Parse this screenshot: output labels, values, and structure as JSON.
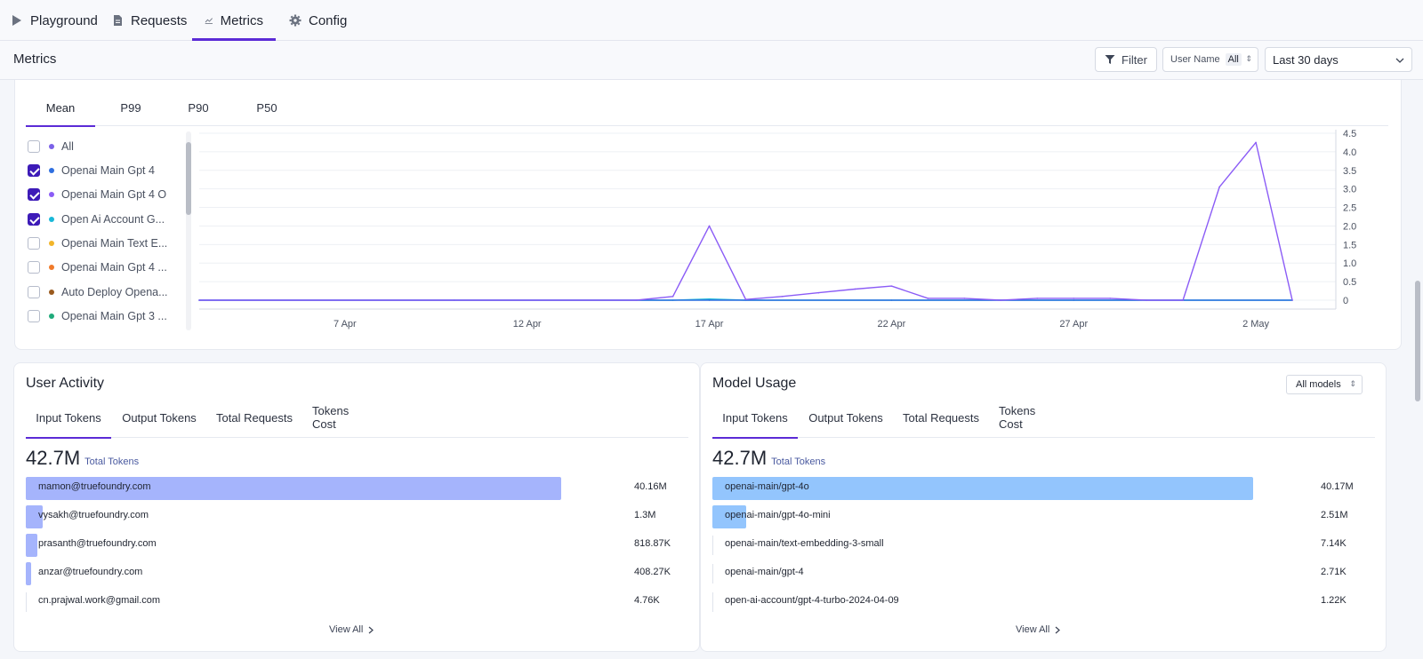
{
  "nav": {
    "tabs": [
      {
        "label": "Playground",
        "icon": "play-icon"
      },
      {
        "label": "Requests",
        "icon": "document-icon"
      },
      {
        "label": "Metrics",
        "icon": "line-chart-icon",
        "active": true
      },
      {
        "label": "Config",
        "icon": "gear-icon"
      }
    ]
  },
  "header": {
    "title": "Metrics",
    "filter_label": "Filter",
    "user_filter_label": "User Name",
    "user_filter_value": "All",
    "date_range": "Last 30 days"
  },
  "percentile_tabs": [
    "Mean",
    "P99",
    "P90",
    "P50"
  ],
  "active_percentile": "Mean",
  "legend": [
    {
      "label": "All",
      "color": "#7b61e8",
      "checked": false
    },
    {
      "label": "Openai Main Gpt 4",
      "color": "#2f6fe0",
      "checked": true
    },
    {
      "label": "Openai Main Gpt 4 O",
      "color": "#8b5cf6",
      "checked": true
    },
    {
      "label": "Open Ai Account G...",
      "color": "#19b8d8",
      "checked": true
    },
    {
      "label": "Openai Main Text E...",
      "color": "#f2b52a",
      "checked": false
    },
    {
      "label": "Openai Main Gpt 4 ...",
      "color": "#f07a2a",
      "checked": false
    },
    {
      "label": "Auto Deploy Opena...",
      "color": "#9a5a1e",
      "checked": false
    },
    {
      "label": "Openai Main Gpt 3 ...",
      "color": "#1faa7a",
      "checked": false
    }
  ],
  "chart_data": {
    "type": "line",
    "x_range": [
      "2024-04-03",
      "2024-05-04"
    ],
    "x_ticks": [
      "7 Apr",
      "12 Apr",
      "17 Apr",
      "22 Apr",
      "27 Apr",
      "2 May"
    ],
    "y_ticks": [
      "0",
      "0.5",
      "1.0",
      "1.5",
      "2.0",
      "2.5",
      "3.0",
      "3.5",
      "4.0",
      "4.5"
    ],
    "ylim": [
      0,
      4.5
    ],
    "y_axis_position": "right",
    "grid": true,
    "series": [
      {
        "name": "Openai Main Gpt 4 O",
        "color": "#8b5cf6",
        "x": [
          "2024-04-03",
          "2024-04-15",
          "2024-04-16",
          "2024-04-17",
          "2024-04-18",
          "2024-04-19",
          "2024-04-20",
          "2024-04-21",
          "2024-04-22",
          "2024-04-23",
          "2024-04-24",
          "2024-04-25",
          "2024-04-26",
          "2024-04-27",
          "2024-04-28",
          "2024-04-29",
          "2024-04-30",
          "2024-05-01",
          "2024-05-02",
          "2024-05-03"
        ],
        "y": [
          0,
          0,
          0.1,
          2.0,
          0.02,
          0.1,
          0.2,
          0.3,
          0.38,
          0.05,
          0.05,
          0,
          0.05,
          0.05,
          0.05,
          0,
          0,
          3.05,
          4.25,
          0
        ]
      },
      {
        "name": "Openai Main Gpt 4",
        "color": "#2f6fe0",
        "x": [
          "2024-04-03",
          "2024-04-10",
          "2024-04-17",
          "2024-04-22",
          "2024-04-27",
          "2024-05-03"
        ],
        "y": [
          0,
          0,
          0,
          0,
          0,
          0
        ]
      },
      {
        "name": "Open Ai Account G...",
        "color": "#19b8d8",
        "x": [
          "2024-04-03",
          "2024-04-16",
          "2024-04-17",
          "2024-04-18",
          "2024-05-03"
        ],
        "y": [
          0,
          0,
          0.03,
          0,
          0
        ]
      }
    ]
  },
  "user_activity": {
    "title": "User Activity",
    "tabs": [
      "Input Tokens",
      "Output Tokens",
      "Total Requests",
      "Tokens Cost"
    ],
    "total_value": "42.7M",
    "total_label": "Total Tokens",
    "bar_color": "#a5b4fc",
    "rows": [
      {
        "name": "mamon@truefoundry.com",
        "value": "40.16M",
        "fraction": 0.94
      },
      {
        "name": "vysakh@truefoundry.com",
        "value": "1.3M",
        "fraction": 0.03
      },
      {
        "name": "prasanth@truefoundry.com",
        "value": "818.87K",
        "fraction": 0.02
      },
      {
        "name": "anzar@truefoundry.com",
        "value": "408.27K",
        "fraction": 0.01
      },
      {
        "name": "cn.prajwal.work@gmail.com",
        "value": "4.76K",
        "fraction": 0.0
      }
    ],
    "view_all": "View All"
  },
  "model_usage": {
    "title": "Model Usage",
    "selector": "All models",
    "tabs": [
      "Input Tokens",
      "Output Tokens",
      "Total Requests",
      "Tokens Cost"
    ],
    "total_value": "42.7M",
    "total_label": "Total Tokens",
    "bar_color": "#93c5fd",
    "rows": [
      {
        "name": "openai-main/gpt-4o",
        "value": "40.17M",
        "fraction": 0.95
      },
      {
        "name": "openai-main/gpt-4o-mini",
        "value": "2.51M",
        "fraction": 0.06
      },
      {
        "name": "openai-main/text-embedding-3-small",
        "value": "7.14K",
        "fraction": 0.0
      },
      {
        "name": "openai-main/gpt-4",
        "value": "2.71K",
        "fraction": 0.0
      },
      {
        "name": "open-ai-account/gpt-4-turbo-2024-04-09",
        "value": "1.22K",
        "fraction": 0.0
      }
    ],
    "view_all": "View All"
  }
}
